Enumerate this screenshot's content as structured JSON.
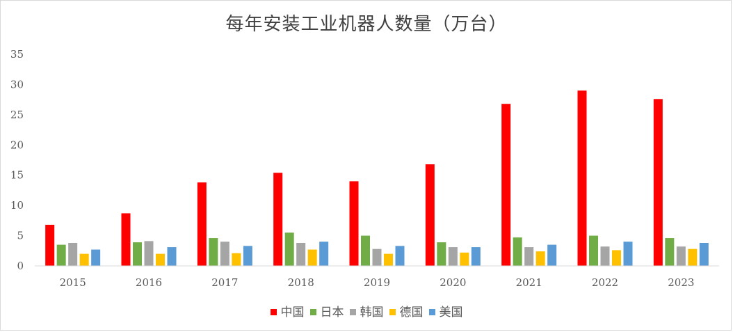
{
  "chart_data": {
    "type": "bar",
    "title": "每年安装工业机器人数量（万台）",
    "categories": [
      "2015",
      "2016",
      "2017",
      "2018",
      "2019",
      "2020",
      "2021",
      "2022",
      "2023"
    ],
    "series": [
      {
        "name": "中国",
        "color": "#ff0000",
        "values": [
          6.8,
          8.7,
          13.8,
          15.4,
          14.0,
          16.8,
          26.8,
          29.0,
          27.6
        ]
      },
      {
        "name": "日本",
        "color": "#70ad47",
        "values": [
          3.5,
          3.9,
          4.6,
          5.5,
          5.0,
          3.9,
          4.7,
          5.0,
          4.6
        ]
      },
      {
        "name": "韩国",
        "color": "#a5a5a5",
        "values": [
          3.8,
          4.1,
          4.0,
          3.8,
          2.8,
          3.1,
          3.1,
          3.2,
          3.2
        ]
      },
      {
        "name": "德国",
        "color": "#ffc000",
        "values": [
          2.0,
          2.0,
          2.1,
          2.7,
          2.0,
          2.2,
          2.4,
          2.6,
          2.8
        ]
      },
      {
        "name": "美国",
        "color": "#5b9bd5",
        "values": [
          2.7,
          3.1,
          3.3,
          4.0,
          3.3,
          3.1,
          3.5,
          4.0,
          3.8
        ]
      }
    ],
    "ylim": [
      0,
      35
    ],
    "yticks": [
      0,
      5,
      10,
      15,
      20,
      25,
      30,
      35
    ],
    "grid": false,
    "legend_position": "bottom"
  }
}
